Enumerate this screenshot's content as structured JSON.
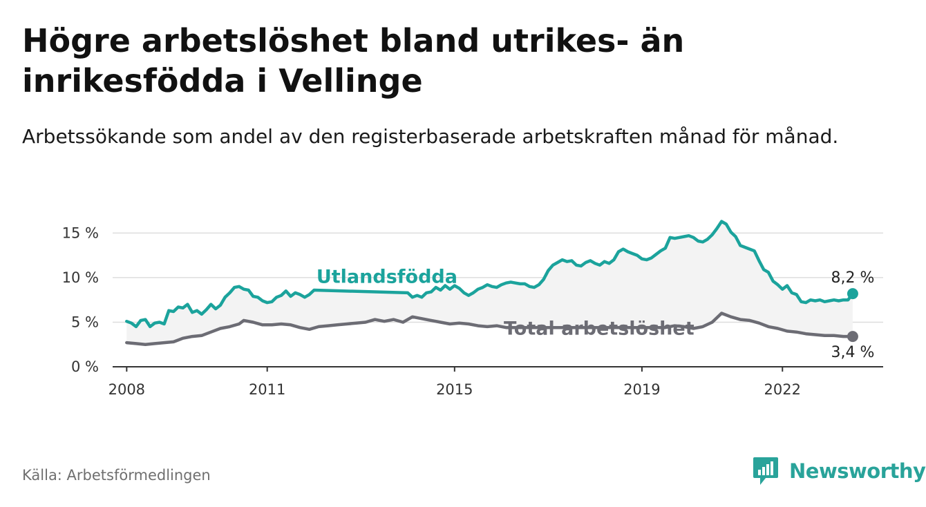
{
  "title": "Högre arbetslöshet bland utrikes- än inrikesfödda i Vellinge",
  "subtitle": "Arbetssökande som andel av den registerbaserade arbetskraften månad för månad.",
  "source": "Källa: Arbetsförmedlingen",
  "brand": "Newsworthy",
  "colors": {
    "foreign": "#1ba39c",
    "total": "#6c6c74",
    "band": "#f3f3f3",
    "grid": "#dddddd",
    "axis": "#333333",
    "brand": "#29a39a"
  },
  "chart_data": {
    "type": "line",
    "title": "Högre arbetslöshet bland utrikes- än inrikesfödda i Vellinge",
    "xlabel": "",
    "ylabel": "",
    "x_unit": "year (decimal, monthly)",
    "xlim": [
      2007.7,
      2024.15
    ],
    "ylim": [
      0,
      16.5
    ],
    "y_ticks": [
      0,
      5,
      10,
      15
    ],
    "y_tick_labels": [
      "0 %",
      "5 %",
      "10 %",
      "15 %"
    ],
    "x_ticks": [
      2008,
      2011,
      2015,
      2019,
      2022
    ],
    "x_tick_labels": [
      "2008",
      "2011",
      "2015",
      "2019",
      "2022"
    ],
    "grid": true,
    "legend": "inline labels on lines",
    "series": [
      {
        "name": "Utlandsfödda",
        "key": "foreign",
        "end_label": "8,2 %",
        "points": [
          [
            2008.0,
            5.1
          ],
          [
            2008.1,
            4.9
          ],
          [
            2008.2,
            4.5
          ],
          [
            2008.3,
            5.2
          ],
          [
            2008.4,
            5.3
          ],
          [
            2008.5,
            4.5
          ],
          [
            2008.6,
            4.9
          ],
          [
            2008.7,
            5.0
          ],
          [
            2008.8,
            4.8
          ],
          [
            2008.9,
            6.3
          ],
          [
            2009.0,
            6.2
          ],
          [
            2009.1,
            6.7
          ],
          [
            2009.2,
            6.6
          ],
          [
            2009.3,
            7.0
          ],
          [
            2009.4,
            6.1
          ],
          [
            2009.5,
            6.3
          ],
          [
            2009.6,
            5.9
          ],
          [
            2009.7,
            6.4
          ],
          [
            2009.8,
            7.0
          ],
          [
            2009.9,
            6.5
          ],
          [
            2010.0,
            6.9
          ],
          [
            2010.1,
            7.8
          ],
          [
            2010.2,
            8.3
          ],
          [
            2010.3,
            8.9
          ],
          [
            2010.4,
            9.0
          ],
          [
            2010.5,
            8.7
          ],
          [
            2010.6,
            8.6
          ],
          [
            2010.7,
            7.9
          ],
          [
            2010.8,
            7.8
          ],
          [
            2010.9,
            7.4
          ],
          [
            2011.0,
            7.2
          ],
          [
            2011.1,
            7.3
          ],
          [
            2011.2,
            7.8
          ],
          [
            2011.3,
            8.0
          ],
          [
            2011.4,
            8.5
          ],
          [
            2011.5,
            7.9
          ],
          [
            2011.6,
            8.3
          ],
          [
            2011.7,
            8.1
          ],
          [
            2011.8,
            7.8
          ],
          [
            2011.9,
            8.1
          ],
          [
            2012.0,
            8.6
          ],
          [
            2014.0,
            8.3
          ],
          [
            2014.1,
            7.8
          ],
          [
            2014.2,
            8.0
          ],
          [
            2014.3,
            7.8
          ],
          [
            2014.4,
            8.3
          ],
          [
            2014.5,
            8.4
          ],
          [
            2014.6,
            8.9
          ],
          [
            2014.7,
            8.6
          ],
          [
            2014.8,
            9.1
          ],
          [
            2014.9,
            8.7
          ],
          [
            2015.0,
            9.1
          ],
          [
            2015.1,
            8.8
          ],
          [
            2015.2,
            8.3
          ],
          [
            2015.3,
            8.0
          ],
          [
            2015.4,
            8.3
          ],
          [
            2015.5,
            8.7
          ],
          [
            2015.6,
            8.9
          ],
          [
            2015.7,
            9.2
          ],
          [
            2015.8,
            9.0
          ],
          [
            2015.9,
            8.9
          ],
          [
            2016.0,
            9.2
          ],
          [
            2016.1,
            9.4
          ],
          [
            2016.2,
            9.5
          ],
          [
            2016.3,
            9.4
          ],
          [
            2016.4,
            9.3
          ],
          [
            2016.5,
            9.3
          ],
          [
            2016.6,
            9.0
          ],
          [
            2016.7,
            8.9
          ],
          [
            2016.8,
            9.2
          ],
          [
            2016.9,
            9.8
          ],
          [
            2017.0,
            10.8
          ],
          [
            2017.1,
            11.4
          ],
          [
            2017.2,
            11.7
          ],
          [
            2017.3,
            12.0
          ],
          [
            2017.4,
            11.8
          ],
          [
            2017.5,
            11.9
          ],
          [
            2017.6,
            11.4
          ],
          [
            2017.7,
            11.3
          ],
          [
            2017.8,
            11.7
          ],
          [
            2017.9,
            11.9
          ],
          [
            2018.0,
            11.6
          ],
          [
            2018.1,
            11.4
          ],
          [
            2018.2,
            11.8
          ],
          [
            2018.3,
            11.6
          ],
          [
            2018.4,
            12.0
          ],
          [
            2018.5,
            12.9
          ],
          [
            2018.6,
            13.2
          ],
          [
            2018.7,
            12.9
          ],
          [
            2018.8,
            12.7
          ],
          [
            2018.9,
            12.5
          ],
          [
            2019.0,
            12.1
          ],
          [
            2019.1,
            12.0
          ],
          [
            2019.2,
            12.2
          ],
          [
            2019.3,
            12.6
          ],
          [
            2019.4,
            13.0
          ],
          [
            2019.5,
            13.3
          ],
          [
            2019.6,
            14.5
          ],
          [
            2019.7,
            14.4
          ],
          [
            2019.8,
            14.5
          ],
          [
            2019.9,
            14.6
          ],
          [
            2020.0,
            14.7
          ],
          [
            2020.1,
            14.5
          ],
          [
            2020.2,
            14.1
          ],
          [
            2020.3,
            14.0
          ],
          [
            2020.4,
            14.3
          ],
          [
            2020.5,
            14.8
          ],
          [
            2020.6,
            15.5
          ],
          [
            2020.7,
            16.3
          ],
          [
            2020.8,
            16.0
          ],
          [
            2020.9,
            15.1
          ],
          [
            2021.0,
            14.6
          ],
          [
            2021.1,
            13.6
          ],
          [
            2021.2,
            13.4
          ],
          [
            2021.3,
            13.2
          ],
          [
            2021.4,
            13.0
          ],
          [
            2021.5,
            11.9
          ],
          [
            2021.6,
            10.9
          ],
          [
            2021.7,
            10.6
          ],
          [
            2021.8,
            9.6
          ],
          [
            2021.9,
            9.2
          ],
          [
            2022.0,
            8.7
          ],
          [
            2022.1,
            9.1
          ],
          [
            2022.2,
            8.3
          ],
          [
            2022.3,
            8.1
          ],
          [
            2022.4,
            7.3
          ],
          [
            2022.5,
            7.2
          ],
          [
            2022.6,
            7.5
          ],
          [
            2022.7,
            7.4
          ],
          [
            2022.8,
            7.5
          ],
          [
            2022.9,
            7.3
          ],
          [
            2023.0,
            7.4
          ],
          [
            2023.1,
            7.5
          ],
          [
            2023.2,
            7.4
          ],
          [
            2023.3,
            7.5
          ],
          [
            2023.4,
            7.5
          ],
          [
            2023.5,
            8.2
          ]
        ]
      },
      {
        "name": "Total arbetslöshet",
        "key": "total",
        "end_label": "3,4 %",
        "points": [
          [
            2008.0,
            2.7
          ],
          [
            2008.2,
            2.6
          ],
          [
            2008.4,
            2.5
          ],
          [
            2008.6,
            2.6
          ],
          [
            2008.8,
            2.7
          ],
          [
            2009.0,
            2.8
          ],
          [
            2009.2,
            3.2
          ],
          [
            2009.4,
            3.4
          ],
          [
            2009.6,
            3.5
          ],
          [
            2009.8,
            3.9
          ],
          [
            2010.0,
            4.3
          ],
          [
            2010.2,
            4.5
          ],
          [
            2010.4,
            4.8
          ],
          [
            2010.5,
            5.2
          ],
          [
            2010.7,
            5.0
          ],
          [
            2010.9,
            4.7
          ],
          [
            2011.1,
            4.7
          ],
          [
            2011.3,
            4.8
          ],
          [
            2011.5,
            4.7
          ],
          [
            2011.7,
            4.4
          ],
          [
            2011.9,
            4.2
          ],
          [
            2012.1,
            4.5
          ],
          [
            2012.3,
            4.6
          ],
          [
            2012.5,
            4.7
          ],
          [
            2012.7,
            4.8
          ],
          [
            2012.9,
            4.9
          ],
          [
            2013.1,
            5.0
          ],
          [
            2013.3,
            5.3
          ],
          [
            2013.5,
            5.1
          ],
          [
            2013.7,
            5.3
          ],
          [
            2013.9,
            5.0
          ],
          [
            2014.1,
            5.6
          ],
          [
            2014.3,
            5.4
          ],
          [
            2014.5,
            5.2
          ],
          [
            2014.7,
            5.0
          ],
          [
            2014.9,
            4.8
          ],
          [
            2015.1,
            4.9
          ],
          [
            2015.3,
            4.8
          ],
          [
            2015.5,
            4.6
          ],
          [
            2015.7,
            4.5
          ],
          [
            2015.9,
            4.6
          ],
          [
            2016.1,
            4.4
          ],
          [
            2019.5,
            4.4
          ],
          [
            2019.7,
            4.6
          ],
          [
            2019.9,
            4.5
          ],
          [
            2020.1,
            4.3
          ],
          [
            2020.3,
            4.5
          ],
          [
            2020.5,
            5.0
          ],
          [
            2020.7,
            6.0
          ],
          [
            2020.9,
            5.6
          ],
          [
            2021.1,
            5.3
          ],
          [
            2021.3,
            5.2
          ],
          [
            2021.5,
            4.9
          ],
          [
            2021.7,
            4.5
          ],
          [
            2021.9,
            4.3
          ],
          [
            2022.1,
            4.0
          ],
          [
            2022.3,
            3.9
          ],
          [
            2022.5,
            3.7
          ],
          [
            2022.7,
            3.6
          ],
          [
            2022.9,
            3.5
          ],
          [
            2023.1,
            3.5
          ],
          [
            2023.3,
            3.4
          ],
          [
            2023.5,
            3.4
          ]
        ]
      }
    ]
  }
}
